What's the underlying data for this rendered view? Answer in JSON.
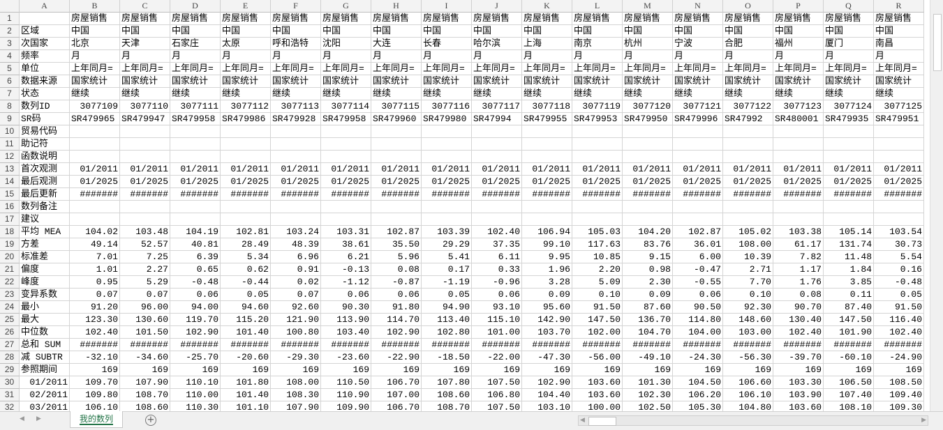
{
  "sheet": {
    "columns": [
      "A",
      "B",
      "C",
      "D",
      "E",
      "F",
      "G",
      "H",
      "I",
      "J",
      "K",
      "L",
      "M",
      "N",
      "O",
      "P",
      "Q",
      "R"
    ],
    "rows": [
      {
        "number": 1,
        "cells": [
          null,
          "房屋销售",
          "房屋销售",
          "房屋销售",
          "房屋销售",
          "房屋销售",
          "房屋销售",
          "房屋销售",
          "房屋销售",
          "房屋销售",
          "房屋销售",
          "房屋销售",
          "房屋销售",
          "房屋销售",
          "房屋销售",
          "房屋销售",
          "房屋销售",
          "房屋销售"
        ]
      },
      {
        "number": 2,
        "cells": [
          "区域",
          "中国",
          "中国",
          "中国",
          "中国",
          "中国",
          "中国",
          "中国",
          "中国",
          "中国",
          "中国",
          "中国",
          "中国",
          "中国",
          "中国",
          "中国",
          "中国",
          "中国"
        ]
      },
      {
        "number": 3,
        "cells": [
          "次国家",
          "北京",
          "天津",
          "石家庄",
          "太原",
          "呼和浩特",
          "沈阳",
          "大连",
          "长春",
          "哈尔滨",
          "上海",
          "南京",
          "杭州",
          "宁波",
          "合肥",
          "福州",
          "厦门",
          "南昌"
        ]
      },
      {
        "number": 4,
        "cells": [
          "频率",
          "月",
          "月",
          "月",
          "月",
          "月",
          "月",
          "月",
          "月",
          "月",
          "月",
          "月",
          "月",
          "月",
          "月",
          "月",
          "月",
          "月"
        ]
      },
      {
        "number": 5,
        "cells": [
          "单位",
          "上年同月=",
          "上年同月=",
          "上年同月=",
          "上年同月=",
          "上年同月=",
          "上年同月=",
          "上年同月=",
          "上年同月=",
          "上年同月=",
          "上年同月=",
          "上年同月=",
          "上年同月=",
          "上年同月=",
          "上年同月=",
          "上年同月=",
          "上年同月=",
          "上年同月="
        ]
      },
      {
        "number": 6,
        "cells": [
          "数据来源",
          "国家统计",
          "国家统计",
          "国家统计",
          "国家统计",
          "国家统计",
          "国家统计",
          "国家统计",
          "国家统计",
          "国家统计",
          "国家统计",
          "国家统计",
          "国家统计",
          "国家统计",
          "国家统计",
          "国家统计",
          "国家统计",
          "国家统计"
        ]
      },
      {
        "number": 7,
        "cells": [
          "状态",
          "继续",
          "继续",
          "继续",
          "继续",
          "继续",
          "继续",
          "继续",
          "继续",
          "继续",
          "继续",
          "继续",
          "继续",
          "继续",
          "继续",
          "继续",
          "继续",
          "继续"
        ]
      },
      {
        "number": 8,
        "cells": [
          "数列ID",
          "3077109",
          "3077110",
          "3077111",
          "3077112",
          "3077113",
          "3077114",
          "3077115",
          "3077116",
          "3077117",
          "3077118",
          "3077119",
          "3077120",
          "3077121",
          "3077122",
          "3077123",
          "3077124",
          "3077125"
        ]
      },
      {
        "number": 9,
        "cells": [
          "SR码",
          "SR479965",
          "SR479947",
          "SR479958",
          "SR479986",
          "SR479928",
          "SR479958",
          "SR479960",
          "SR479980",
          "SR47994",
          "SR479955",
          "SR479953",
          "SR479950",
          "SR479996",
          "SR47992",
          "SR480001",
          "SR479935",
          "SR479951"
        ]
      },
      {
        "number": 10,
        "cells": [
          "贸易代码",
          null,
          null,
          null,
          null,
          null,
          null,
          null,
          null,
          null,
          null,
          null,
          null,
          null,
          null,
          null,
          null,
          null
        ]
      },
      {
        "number": 11,
        "cells": [
          "助记符",
          null,
          null,
          null,
          null,
          null,
          null,
          null,
          null,
          null,
          null,
          null,
          null,
          null,
          null,
          null,
          null,
          null
        ]
      },
      {
        "number": 12,
        "cells": [
          "函数说明",
          null,
          null,
          null,
          null,
          null,
          null,
          null,
          null,
          null,
          null,
          null,
          null,
          null,
          null,
          null,
          null,
          null
        ]
      },
      {
        "number": 13,
        "cells": [
          "首次观测",
          "01/2011",
          "01/2011",
          "01/2011",
          "01/2011",
          "01/2011",
          "01/2011",
          "01/2011",
          "01/2011",
          "01/2011",
          "01/2011",
          "01/2011",
          "01/2011",
          "01/2011",
          "01/2011",
          "01/2011",
          "01/2011",
          "01/2011"
        ]
      },
      {
        "number": 14,
        "cells": [
          "最后观测",
          "01/2025",
          "01/2025",
          "01/2025",
          "01/2025",
          "01/2025",
          "01/2025",
          "01/2025",
          "01/2025",
          "01/2025",
          "01/2025",
          "01/2025",
          "01/2025",
          "01/2025",
          "01/2025",
          "01/2025",
          "01/2025",
          "01/2025"
        ]
      },
      {
        "number": 15,
        "cells": [
          "最后更新",
          "#######",
          "#######",
          "#######",
          "#######",
          "#######",
          "#######",
          "#######",
          "#######",
          "#######",
          "#######",
          "#######",
          "#######",
          "#######",
          "#######",
          "#######",
          "#######",
          "#######"
        ]
      },
      {
        "number": 16,
        "cells": [
          "数列备注",
          null,
          null,
          null,
          null,
          null,
          null,
          null,
          null,
          null,
          null,
          null,
          null,
          null,
          null,
          null,
          null,
          null
        ]
      },
      {
        "number": 17,
        "cells": [
          "建议",
          null,
          null,
          null,
          null,
          null,
          null,
          null,
          null,
          null,
          null,
          null,
          null,
          null,
          null,
          null,
          null,
          null
        ]
      },
      {
        "number": 18,
        "cells": [
          "平均 MEA",
          "104.02",
          "103.48",
          "104.19",
          "102.81",
          "103.24",
          "103.31",
          "102.87",
          "103.39",
          "102.40",
          "106.94",
          "105.03",
          "104.20",
          "102.87",
          "105.02",
          "103.38",
          "105.14",
          "103.54"
        ]
      },
      {
        "number": 19,
        "cells": [
          "方差",
          "49.14",
          "52.57",
          "40.81",
          "28.49",
          "48.39",
          "38.61",
          "35.50",
          "29.29",
          "37.35",
          "99.10",
          "117.63",
          "83.76",
          "36.01",
          "108.00",
          "61.17",
          "131.74",
          "30.73"
        ]
      },
      {
        "number": 20,
        "cells": [
          "标准差",
          "7.01",
          "7.25",
          "6.39",
          "5.34",
          "6.96",
          "6.21",
          "5.96",
          "5.41",
          "6.11",
          "9.95",
          "10.85",
          "9.15",
          "6.00",
          "10.39",
          "7.82",
          "11.48",
          "5.54"
        ]
      },
      {
        "number": 21,
        "cells": [
          "偏度",
          "1.01",
          "2.27",
          "0.65",
          "0.62",
          "0.91",
          "-0.13",
          "0.08",
          "0.17",
          "0.33",
          "1.96",
          "2.20",
          "0.98",
          "-0.47",
          "2.71",
          "1.17",
          "1.84",
          "0.16"
        ]
      },
      {
        "number": 22,
        "cells": [
          "峰度",
          "0.95",
          "5.29",
          "-0.48",
          "-0.44",
          "0.02",
          "-1.12",
          "-0.87",
          "-1.19",
          "-0.96",
          "3.28",
          "5.09",
          "2.30",
          "-0.55",
          "7.70",
          "1.76",
          "3.85",
          "-0.48"
        ]
      },
      {
        "number": 23,
        "cells": [
          "变异系数",
          "0.07",
          "0.07",
          "0.06",
          "0.05",
          "0.07",
          "0.06",
          "0.06",
          "0.05",
          "0.06",
          "0.09",
          "0.10",
          "0.09",
          "0.06",
          "0.10",
          "0.08",
          "0.11",
          "0.05"
        ]
      },
      {
        "number": 24,
        "cells": [
          "最小",
          "91.20",
          "96.00",
          "94.00",
          "94.60",
          "92.60",
          "90.30",
          "91.80",
          "94.90",
          "93.10",
          "95.60",
          "91.50",
          "87.60",
          "90.50",
          "92.30",
          "90.70",
          "87.40",
          "91.50"
        ]
      },
      {
        "number": 25,
        "cells": [
          "最大",
          "123.30",
          "130.60",
          "119.70",
          "115.20",
          "121.90",
          "113.90",
          "114.70",
          "113.40",
          "115.10",
          "142.90",
          "147.50",
          "136.70",
          "114.80",
          "148.60",
          "130.40",
          "147.50",
          "116.40"
        ]
      },
      {
        "number": 26,
        "cells": [
          "中位数",
          "102.40",
          "101.50",
          "102.90",
          "101.40",
          "100.80",
          "103.40",
          "102.90",
          "102.80",
          "101.00",
          "103.70",
          "102.00",
          "104.70",
          "104.00",
          "103.00",
          "102.40",
          "101.90",
          "102.40"
        ]
      },
      {
        "number": 27,
        "cells": [
          "总和 SUM",
          "#######",
          "#######",
          "#######",
          "#######",
          "#######",
          "#######",
          "#######",
          "#######",
          "#######",
          "#######",
          "#######",
          "#######",
          "#######",
          "#######",
          "#######",
          "#######",
          "#######"
        ]
      },
      {
        "number": 28,
        "cells": [
          "减 SUBTR",
          "-32.10",
          "-34.60",
          "-25.70",
          "-20.60",
          "-29.30",
          "-23.60",
          "-22.90",
          "-18.50",
          "-22.00",
          "-47.30",
          "-56.00",
          "-49.10",
          "-24.30",
          "-56.30",
          "-39.70",
          "-60.10",
          "-24.90"
        ]
      },
      {
        "number": 29,
        "cells": [
          "参照期间",
          "169",
          "169",
          "169",
          "169",
          "169",
          "169",
          "169",
          "169",
          "169",
          "169",
          "169",
          "169",
          "169",
          "169",
          "169",
          "169",
          "169"
        ]
      },
      {
        "number": 30,
        "cells": [
          "01/2011",
          "109.70",
          "107.90",
          "110.10",
          "101.80",
          "108.00",
          "110.50",
          "106.70",
          "107.80",
          "107.50",
          "102.90",
          "103.60",
          "101.30",
          "104.50",
          "106.60",
          "103.30",
          "106.50",
          "108.50"
        ]
      },
      {
        "number": 31,
        "cells": [
          "02/2011",
          "109.80",
          "108.70",
          "110.00",
          "101.40",
          "108.30",
          "110.90",
          "107.00",
          "108.60",
          "106.80",
          "104.40",
          "103.60",
          "102.30",
          "106.20",
          "106.10",
          "103.90",
          "107.40",
          "109.40"
        ]
      },
      {
        "number": 32,
        "cells": [
          "03/2011",
          "106.10",
          "108.60",
          "110.30",
          "101.10",
          "107.90",
          "109.90",
          "106.70",
          "108.70",
          "107.50",
          "103.10",
          "100.00",
          "102.50",
          "105.30",
          "104.80",
          "103.60",
          "108.10",
          "109.30"
        ]
      }
    ]
  },
  "sheet_tabs": [
    "我的数列"
  ]
}
